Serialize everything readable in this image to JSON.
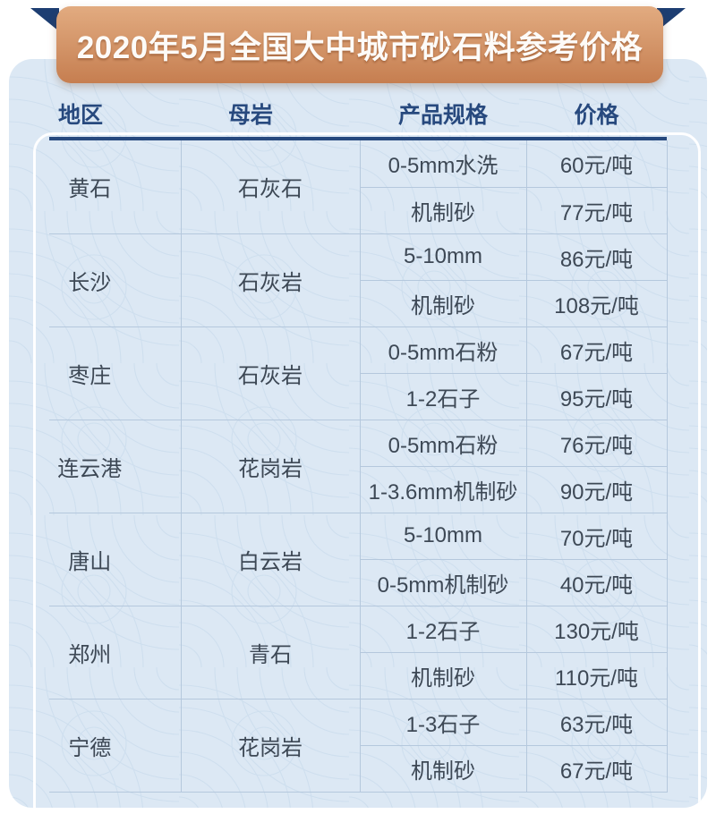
{
  "banner": {
    "title": "2020年5月全国大中城市砂石料参考价格"
  },
  "table": {
    "headers": [
      "地区",
      "母岩",
      "产品规格",
      "价格"
    ],
    "groups": [
      {
        "region": "黄石",
        "rock": "石灰石",
        "products": [
          {
            "spec": "0-5mm水洗",
            "price": "60元/吨"
          },
          {
            "spec": "机制砂",
            "price": "77元/吨"
          }
        ]
      },
      {
        "region": "长沙",
        "rock": "石灰岩",
        "products": [
          {
            "spec": "5-10mm",
            "price": "86元/吨"
          },
          {
            "spec": "机制砂",
            "price": "108元/吨"
          }
        ]
      },
      {
        "region": "枣庄",
        "rock": "石灰岩",
        "products": [
          {
            "spec": "0-5mm石粉",
            "price": "67元/吨"
          },
          {
            "spec": "1-2石子",
            "price": "95元/吨"
          }
        ]
      },
      {
        "region": "连云港",
        "rock": "花岗岩",
        "products": [
          {
            "spec": "0-5mm石粉",
            "price": "76元/吨"
          },
          {
            "spec": "1-3.6mm机制砂",
            "price": "90元/吨"
          }
        ]
      },
      {
        "region": "唐山",
        "rock": "白云岩",
        "products": [
          {
            "spec": "5-10mm",
            "price": "70元/吨"
          },
          {
            "spec": "0-5mm机制砂",
            "price": "40元/吨"
          }
        ]
      },
      {
        "region": "郑州",
        "rock": "青石",
        "products": [
          {
            "spec": "1-2石子",
            "price": "130元/吨"
          },
          {
            "spec": "机制砂",
            "price": "110元/吨"
          }
        ]
      },
      {
        "region": "宁德",
        "rock": "花岗岩",
        "products": [
          {
            "spec": "1-3石子",
            "price": "63元/吨"
          },
          {
            "spec": "机制砂",
            "price": "67元/吨"
          }
        ]
      }
    ]
  },
  "colors": {
    "card_background": "#dce8f4",
    "grid_line": "#b5c8dd",
    "header_navy": "#27497e",
    "ribbon_navy": "#1d3e72",
    "body_text": "#3d4855",
    "banner_gradient_top": "#e2ab80",
    "banner_gradient_bottom": "#c67e50",
    "banner_text": "#fdfbf8"
  },
  "chart_data": {
    "type": "table",
    "title": "2020年5月全国大中城市砂石料参考价格",
    "columns": [
      "地区",
      "母岩",
      "产品规格",
      "价格"
    ],
    "rows": [
      [
        "黄石",
        "石灰石",
        "0-5mm水洗",
        "60元/吨"
      ],
      [
        "黄石",
        "石灰石",
        "机制砂",
        "77元/吨"
      ],
      [
        "长沙",
        "石灰岩",
        "5-10mm",
        "86元/吨"
      ],
      [
        "长沙",
        "石灰岩",
        "机制砂",
        "108元/吨"
      ],
      [
        "枣庄",
        "石灰岩",
        "0-5mm石粉",
        "67元/吨"
      ],
      [
        "枣庄",
        "石灰岩",
        "1-2石子",
        "95元/吨"
      ],
      [
        "连云港",
        "花岗岩",
        "0-5mm石粉",
        "76元/吨"
      ],
      [
        "连云港",
        "花岗岩",
        "1-3.6mm机制砂",
        "90元/吨"
      ],
      [
        "唐山",
        "白云岩",
        "5-10mm",
        "70元/吨"
      ],
      [
        "唐山",
        "白云岩",
        "0-5mm机制砂",
        "40元/吨"
      ],
      [
        "郑州",
        "青石",
        "1-2石子",
        "130元/吨"
      ],
      [
        "郑州",
        "青石",
        "机制砂",
        "110元/吨"
      ],
      [
        "宁德",
        "花岗岩",
        "1-3石子",
        "63元/吨"
      ],
      [
        "宁德",
        "花岗岩",
        "机制砂",
        "67元/吨"
      ]
    ],
    "layout": {
      "merged_columns": [
        "地区",
        "母岩"
      ],
      "rows_per_region": 2,
      "grid": "internal lines only, thick navy rule under header"
    }
  }
}
